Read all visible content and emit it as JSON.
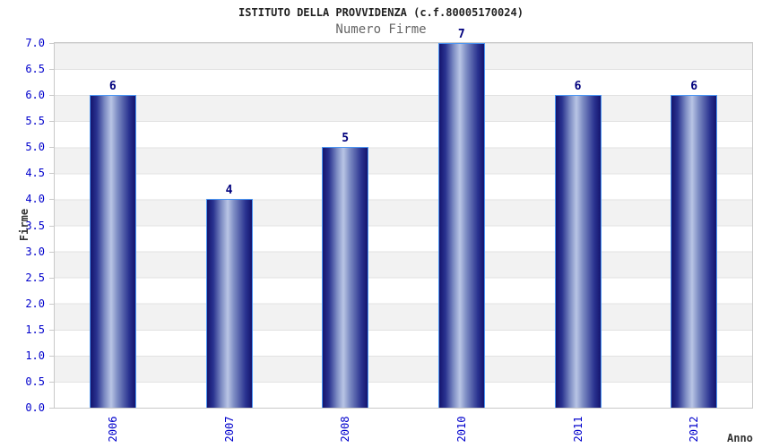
{
  "chart_data": {
    "type": "bar",
    "title": "ISTITUTO DELLA PROVVIDENZA (c.f.80005170024)",
    "subtitle": "Numero Firme",
    "xlabel": "Anno",
    "ylabel": "Firme",
    "categories": [
      "2006",
      "2007",
      "2008",
      "2010",
      "2011",
      "2012"
    ],
    "values": [
      6,
      4,
      5,
      7,
      6,
      6
    ],
    "ylim": [
      0,
      7
    ],
    "ytick_step": 0.5,
    "ytick_labels": [
      "0.0",
      "0.5",
      "1.0",
      "1.5",
      "2.0",
      "2.5",
      "3.0",
      "3.5",
      "4.0",
      "4.5",
      "5.0",
      "5.5",
      "6.0",
      "6.5",
      "7.0"
    ],
    "grid": true,
    "legend": false,
    "colors": {
      "bar_dark": "#14146e",
      "bar_mid": "#2a3390",
      "bar_soft": "#7e8dc4",
      "bar_light": "#b9c5e5",
      "bar_border": "#4b96f3",
      "tick_label": "#0000cc",
      "value_label": "#00007d",
      "band_gray": "#f2f2f2",
      "band_white": "#ffffff",
      "grid_line": "#e2e2e2",
      "plot_border": "#c9c9c9",
      "title_text": "#222222",
      "subtitle_text": "#666666",
      "axis_title_text": "#333333"
    }
  }
}
